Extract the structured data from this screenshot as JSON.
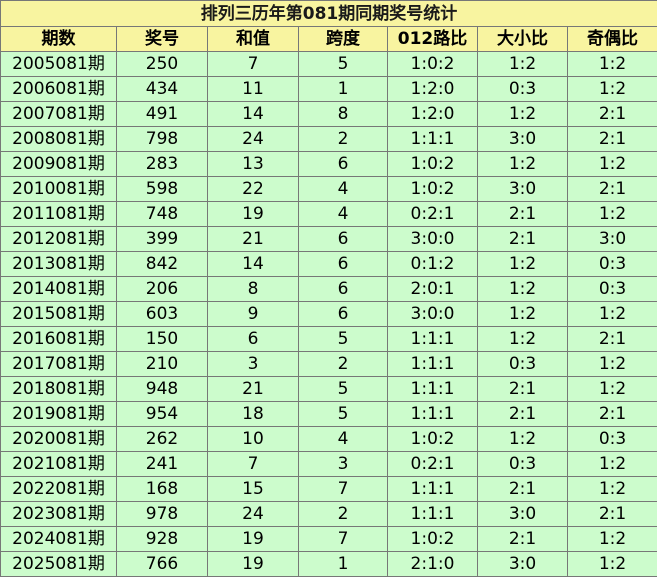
{
  "title": "排列三历年第081期同期奖号统计",
  "table": {
    "header": [
      "期数",
      "奖号",
      "和值",
      "跨度",
      "012路比",
      "大小比",
      "奇偶比"
    ],
    "rows": [
      [
        "2005081期",
        "250",
        "7",
        "5",
        "1:0:2",
        "1:2",
        "1:2"
      ],
      [
        "2006081期",
        "434",
        "11",
        "1",
        "1:2:0",
        "0:3",
        "1:2"
      ],
      [
        "2007081期",
        "491",
        "14",
        "8",
        "1:2:0",
        "1:2",
        "2:1"
      ],
      [
        "2008081期",
        "798",
        "24",
        "2",
        "1:1:1",
        "3:0",
        "2:1"
      ],
      [
        "2009081期",
        "283",
        "13",
        "6",
        "1:0:2",
        "1:2",
        "1:2"
      ],
      [
        "2010081期",
        "598",
        "22",
        "4",
        "1:0:2",
        "3:0",
        "2:1"
      ],
      [
        "2011081期",
        "748",
        "19",
        "4",
        "0:2:1",
        "2:1",
        "1:2"
      ],
      [
        "2012081期",
        "399",
        "21",
        "6",
        "3:0:0",
        "2:1",
        "3:0"
      ],
      [
        "2013081期",
        "842",
        "14",
        "6",
        "0:1:2",
        "1:2",
        "0:3"
      ],
      [
        "2014081期",
        "206",
        "8",
        "6",
        "2:0:1",
        "1:2",
        "0:3"
      ],
      [
        "2015081期",
        "603",
        "9",
        "6",
        "3:0:0",
        "1:2",
        "1:2"
      ],
      [
        "2016081期",
        "150",
        "6",
        "5",
        "1:1:1",
        "1:2",
        "2:1"
      ],
      [
        "2017081期",
        "210",
        "3",
        "2",
        "1:1:1",
        "0:3",
        "1:2"
      ],
      [
        "2018081期",
        "948",
        "21",
        "5",
        "1:1:1",
        "2:1",
        "1:2"
      ],
      [
        "2019081期",
        "954",
        "18",
        "5",
        "1:1:1",
        "2:1",
        "2:1"
      ],
      [
        "2020081期",
        "262",
        "10",
        "4",
        "1:0:2",
        "1:2",
        "0:3"
      ],
      [
        "2021081期",
        "241",
        "7",
        "3",
        "0:2:1",
        "0:3",
        "1:2"
      ],
      [
        "2022081期",
        "168",
        "15",
        "7",
        "1:1:1",
        "2:1",
        "1:2"
      ],
      [
        "2023081期",
        "978",
        "24",
        "2",
        "1:1:1",
        "3:0",
        "2:1"
      ],
      [
        "2024081期",
        "928",
        "19",
        "7",
        "1:0:2",
        "2:1",
        "1:2"
      ],
      [
        "2025081期",
        "766",
        "19",
        "1",
        "2:1:0",
        "3:0",
        "1:2"
      ]
    ]
  }
}
